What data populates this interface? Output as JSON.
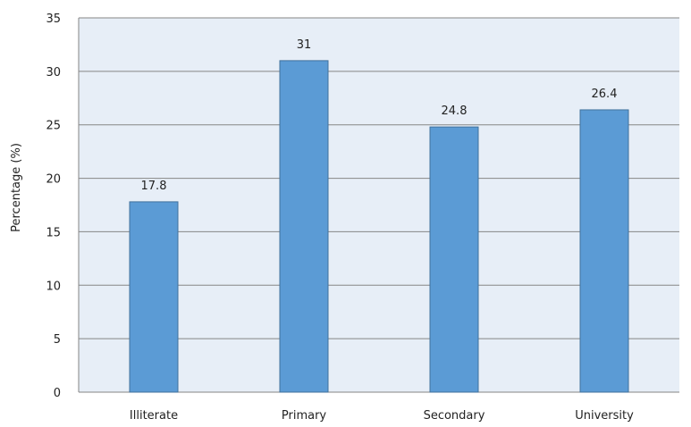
{
  "chart_data": {
    "type": "bar",
    "categories": [
      "Illiterate",
      "Primary",
      "Secondary",
      "University"
    ],
    "values": [
      17.8,
      31,
      24.8,
      26.4
    ],
    "data_labels": [
      "17.8",
      "31",
      "24.8",
      "26.4"
    ],
    "title": "",
    "xlabel": "",
    "ylabel": "Percentage (%)",
    "ylim": [
      0,
      35
    ],
    "yticks": [
      0,
      5,
      10,
      15,
      20,
      25,
      30,
      35
    ],
    "grid": true,
    "legend": "none",
    "colors": {
      "bar_fill": "#5b9bd5",
      "bar_stroke": "#41719c",
      "plot_bg": "#e7eef7",
      "gridline": "#868686",
      "axis": "#868686"
    }
  }
}
